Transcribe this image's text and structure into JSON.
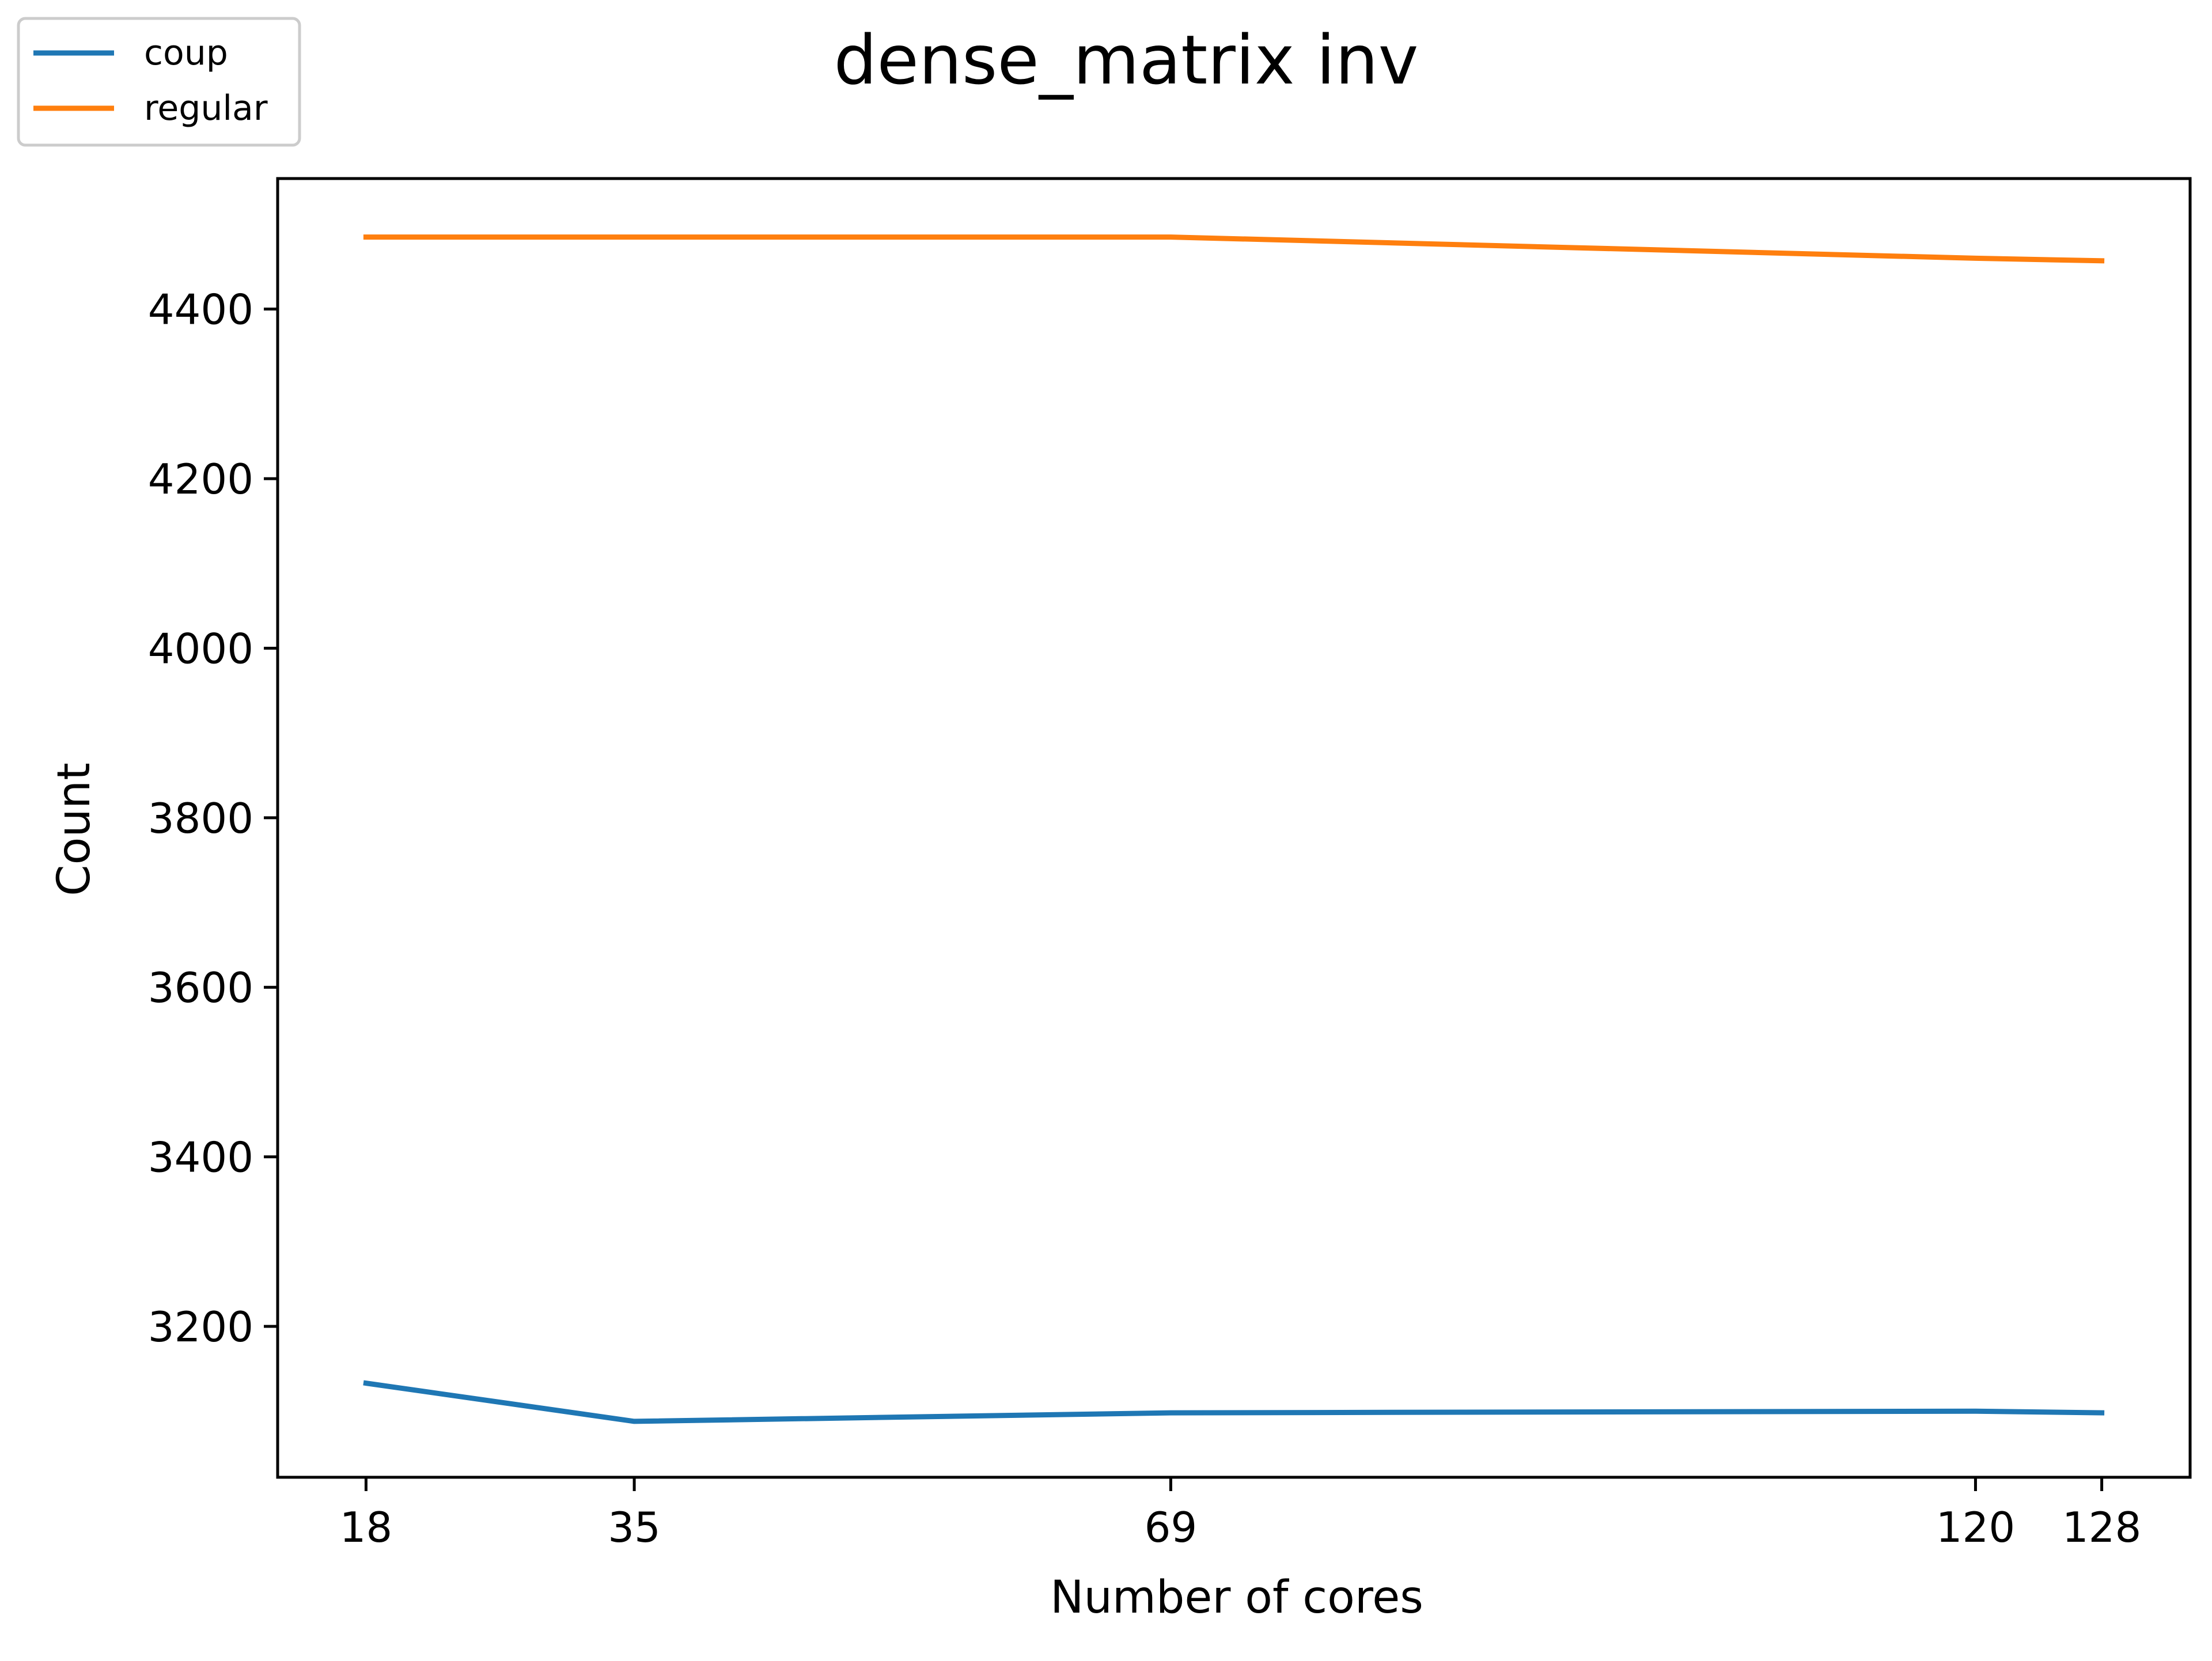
{
  "chart_data": {
    "type": "line",
    "title": "dense_matrix inv",
    "xlabel": "Number of cores",
    "ylabel": "Count",
    "x": [
      18,
      35,
      69,
      120,
      128
    ],
    "x_ticks": [
      18,
      35,
      69,
      120,
      128
    ],
    "y_ticks": [
      3200,
      3400,
      3600,
      3800,
      4000,
      4200,
      4400
    ],
    "xlim": [
      12.4,
      133.6
    ],
    "ylim": [
      3022,
      4554
    ],
    "grid": false,
    "legend_position": "top-left",
    "series": [
      {
        "name": "coup",
        "color": "#1f77b4",
        "values": [
          3133,
          3088,
          3098,
          3100,
          3098
        ]
      },
      {
        "name": "regular",
        "color": "#ff7f0e",
        "values": [
          4485,
          4485,
          4485,
          4460,
          4457
        ]
      }
    ]
  }
}
